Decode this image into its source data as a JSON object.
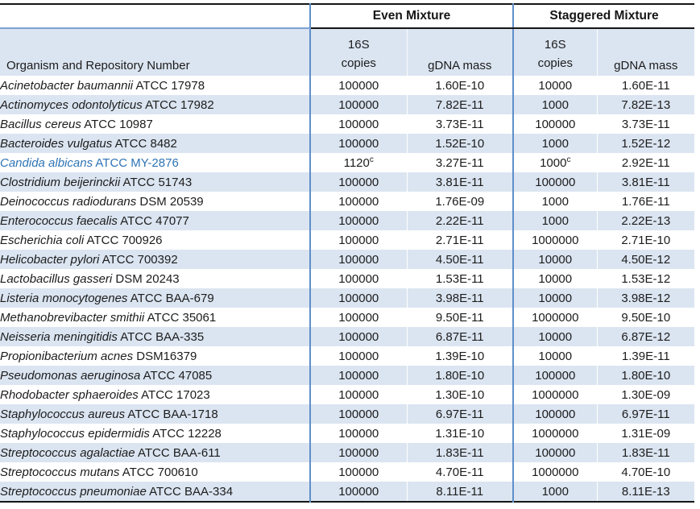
{
  "table": {
    "group_headers": {
      "blank": "",
      "even": "Even Mixture",
      "staggered": "Staggered Mixture"
    },
    "col_headers": {
      "organism": "Organism and Repository Number",
      "copies_line1": "16S",
      "copies_line2": "copies",
      "gdna": "gDNA mass"
    },
    "colors": {
      "band_blue": "#dbe5f1",
      "separator_blue": "#5f8fc9",
      "highlight_text_blue": "#2e74b5",
      "border_black": "#161616"
    },
    "rows": [
      {
        "organism": "Acinetobacter baumannii",
        "repo": "ATCC 17978",
        "even_copies": "100000",
        "even_gdna": "1.60E-10",
        "stag_copies": "10000",
        "stag_gdna": "1.60E-11",
        "highlight": false
      },
      {
        "organism": "Actinomyces odontolyticus",
        "repo": "ATCC 17982",
        "even_copies": "100000",
        "even_gdna": "7.82E-11",
        "stag_copies": "1000",
        "stag_gdna": "7.82E-13",
        "highlight": false
      },
      {
        "organism": "Bacillus cereus",
        "repo": "ATCC 10987",
        "even_copies": "100000",
        "even_gdna": "3.73E-11",
        "stag_copies": "100000",
        "stag_gdna": "3.73E-11",
        "highlight": false
      },
      {
        "organism": "Bacteroides vulgatus",
        "repo": "ATCC 8482",
        "even_copies": "100000",
        "even_gdna": "1.52E-10",
        "stag_copies": "1000",
        "stag_gdna": "1.52E-12",
        "highlight": false
      },
      {
        "organism": "Candida albicans",
        "repo": "ATCC MY-2876",
        "even_copies": "1120^c",
        "even_gdna": "3.27E-11",
        "stag_copies": "1000^c",
        "stag_gdna": "2.92E-11",
        "highlight": true
      },
      {
        "organism": "Clostridium beijerinckii",
        "repo": "ATCC 51743",
        "even_copies": "100000",
        "even_gdna": "3.81E-11",
        "stag_copies": "100000",
        "stag_gdna": "3.81E-11",
        "highlight": false
      },
      {
        "organism": "Deinococcus radiodurans",
        "repo": "DSM 20539",
        "even_copies": "100000",
        "even_gdna": "1.76E-09",
        "stag_copies": "1000",
        "stag_gdna": "1.76E-11",
        "highlight": false
      },
      {
        "organism": "Enterococcus faecalis",
        "repo": "ATCC 47077",
        "even_copies": "100000",
        "even_gdna": "2.22E-11",
        "stag_copies": "1000",
        "stag_gdna": "2.22E-13",
        "highlight": false
      },
      {
        "organism": "Escherichia coli",
        "repo": "ATCC 700926",
        "even_copies": "100000",
        "even_gdna": "2.71E-11",
        "stag_copies": "1000000",
        "stag_gdna": "2.71E-10",
        "highlight": false
      },
      {
        "organism": "Helicobacter pylori",
        "repo": "ATCC 700392",
        "even_copies": "100000",
        "even_gdna": "4.50E-11",
        "stag_copies": "10000",
        "stag_gdna": "4.50E-12",
        "highlight": false
      },
      {
        "organism": "Lactobacillus gasseri",
        "repo": "DSM 20243",
        "even_copies": "100000",
        "even_gdna": "1.53E-11",
        "stag_copies": "10000",
        "stag_gdna": "1.53E-12",
        "highlight": false
      },
      {
        "organism": "Listeria monocytogenes",
        "repo": "ATCC BAA-679",
        "even_copies": "100000",
        "even_gdna": "3.98E-11",
        "stag_copies": "10000",
        "stag_gdna": "3.98E-12",
        "highlight": false
      },
      {
        "organism": "Methanobrevibacter smithii",
        "repo": "ATCC 35061",
        "even_copies": "100000",
        "even_gdna": "9.50E-11",
        "stag_copies": "1000000",
        "stag_gdna": "9.50E-10",
        "highlight": false
      },
      {
        "organism": "Neisseria meningitidis",
        "repo": "ATCC BAA-335",
        "even_copies": "100000",
        "even_gdna": "6.87E-11",
        "stag_copies": "10000",
        "stag_gdna": "6.87E-12",
        "highlight": false
      },
      {
        "organism": "Propionibacterium acnes",
        "repo": "DSM16379",
        "even_copies": "100000",
        "even_gdna": "1.39E-10",
        "stag_copies": "10000",
        "stag_gdna": "1.39E-11",
        "highlight": false
      },
      {
        "organism": "Pseudomonas aeruginosa",
        "repo": "ATCC 47085",
        "even_copies": "100000",
        "even_gdna": "1.80E-10",
        "stag_copies": "100000",
        "stag_gdna": "1.80E-10",
        "highlight": false
      },
      {
        "organism": "Rhodobacter sphaeroides",
        "repo": "ATCC 17023",
        "even_copies": "100000",
        "even_gdna": "1.30E-10",
        "stag_copies": "1000000",
        "stag_gdna": "1.30E-09",
        "highlight": false
      },
      {
        "organism": "Staphylococcus aureus",
        "repo": "ATCC BAA-1718",
        "even_copies": "100000",
        "even_gdna": "6.97E-11",
        "stag_copies": "100000",
        "stag_gdna": "6.97E-11",
        "highlight": false
      },
      {
        "organism": "Staphylococcus epidermidis",
        "repo": "ATCC 12228",
        "even_copies": "100000",
        "even_gdna": "1.31E-10",
        "stag_copies": "1000000",
        "stag_gdna": "1.31E-09",
        "highlight": false
      },
      {
        "organism": "Streptococcus agalactiae",
        "repo": "ATCC BAA-611",
        "even_copies": "100000",
        "even_gdna": "1.83E-11",
        "stag_copies": "100000",
        "stag_gdna": "1.83E-11",
        "highlight": false
      },
      {
        "organism": "Streptococcus mutans",
        "repo": "ATCC 700610",
        "even_copies": "100000",
        "even_gdna": "4.70E-11",
        "stag_copies": "1000000",
        "stag_gdna": "4.70E-10",
        "highlight": false
      },
      {
        "organism": "Streptococcus pneumoniae",
        "repo": "ATCC BAA-334",
        "even_copies": "100000",
        "even_gdna": "8.11E-11",
        "stag_copies": "1000",
        "stag_gdna": "8.11E-13",
        "highlight": false
      }
    ]
  }
}
